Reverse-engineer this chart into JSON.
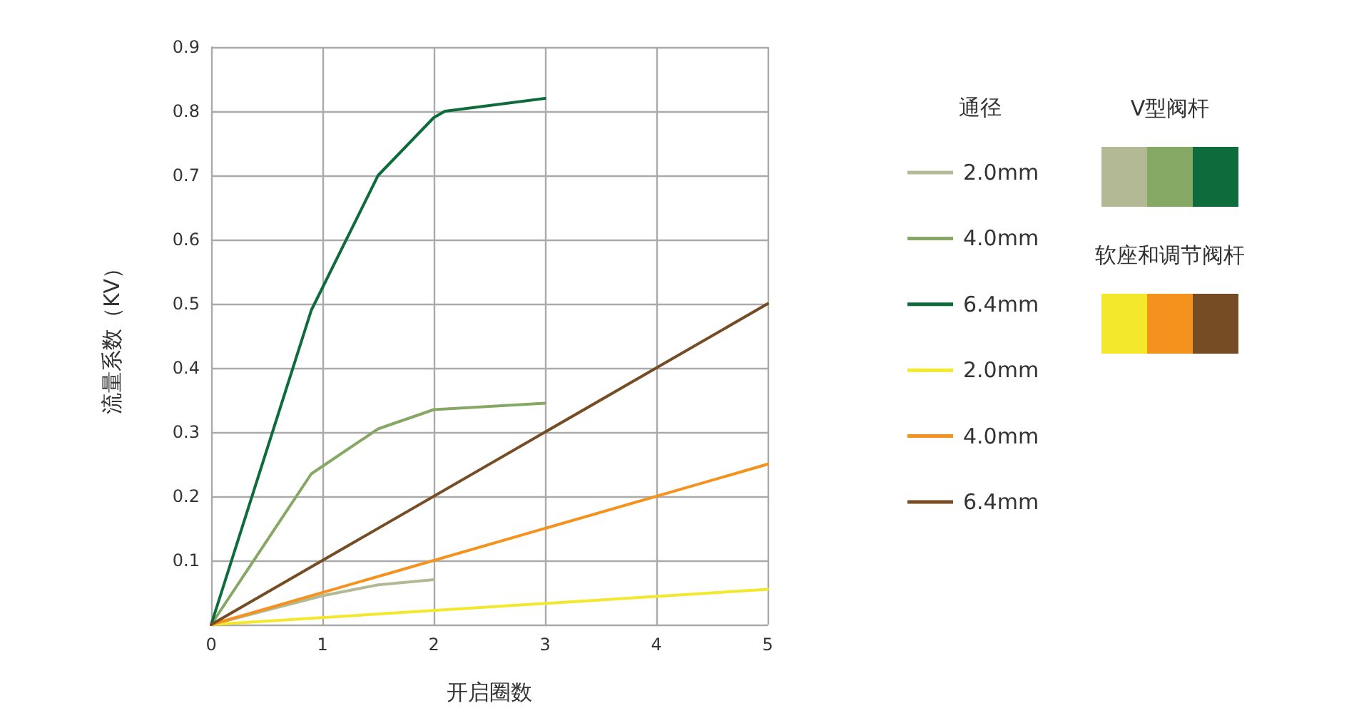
{
  "chart_data": {
    "type": "line",
    "xlabel": "开启圈数",
    "ylabel": "流量系数（KV）",
    "legend_title": "通径",
    "xlim": [
      0,
      5
    ],
    "xticks": [
      0,
      1,
      2,
      3,
      4,
      5
    ],
    "ylim": [
      0,
      0.9
    ],
    "yticks": [
      {
        "value": 0,
        "label": null
      },
      0.1,
      0.2,
      0.3,
      0.4,
      0.5,
      0.6,
      0.7,
      0.8,
      0.9
    ],
    "grid": true,
    "legend": "right",
    "marker": "none",
    "line_style": "solid",
    "annotations": [
      "V型阀杆",
      "软座和调节阀杆"
    ],
    "series": [
      {
        "name": "2.0mm",
        "color": "#b3b995",
        "x": [
          0,
          1,
          1.5,
          2
        ],
        "values": [
          0,
          0.045,
          0.062,
          0.07
        ]
      },
      {
        "name": "4.0mm",
        "color": "#86a865",
        "x": [
          0,
          0.9,
          1.5,
          2,
          3
        ],
        "values": [
          0,
          0.235,
          0.305,
          0.335,
          0.345
        ]
      },
      {
        "name": "6.4mm",
        "color": "#0e6b3c",
        "x": [
          0,
          0.9,
          1.5,
          2,
          2.1,
          3
        ],
        "values": [
          0,
          0.49,
          0.7,
          0.79,
          0.8,
          0.82
        ]
      },
      {
        "name": "2.0mm",
        "color": "#f4e82c",
        "x": [
          0,
          5
        ],
        "values": [
          0,
          0.055
        ]
      },
      {
        "name": "4.0mm",
        "color": "#f5921e",
        "x": [
          0,
          5
        ],
        "values": [
          0,
          0.25
        ]
      },
      {
        "name": "6.4mm",
        "color": "#754c24",
        "x": [
          0,
          5
        ],
        "values": [
          0,
          0.5
        ]
      }
    ]
  }
}
